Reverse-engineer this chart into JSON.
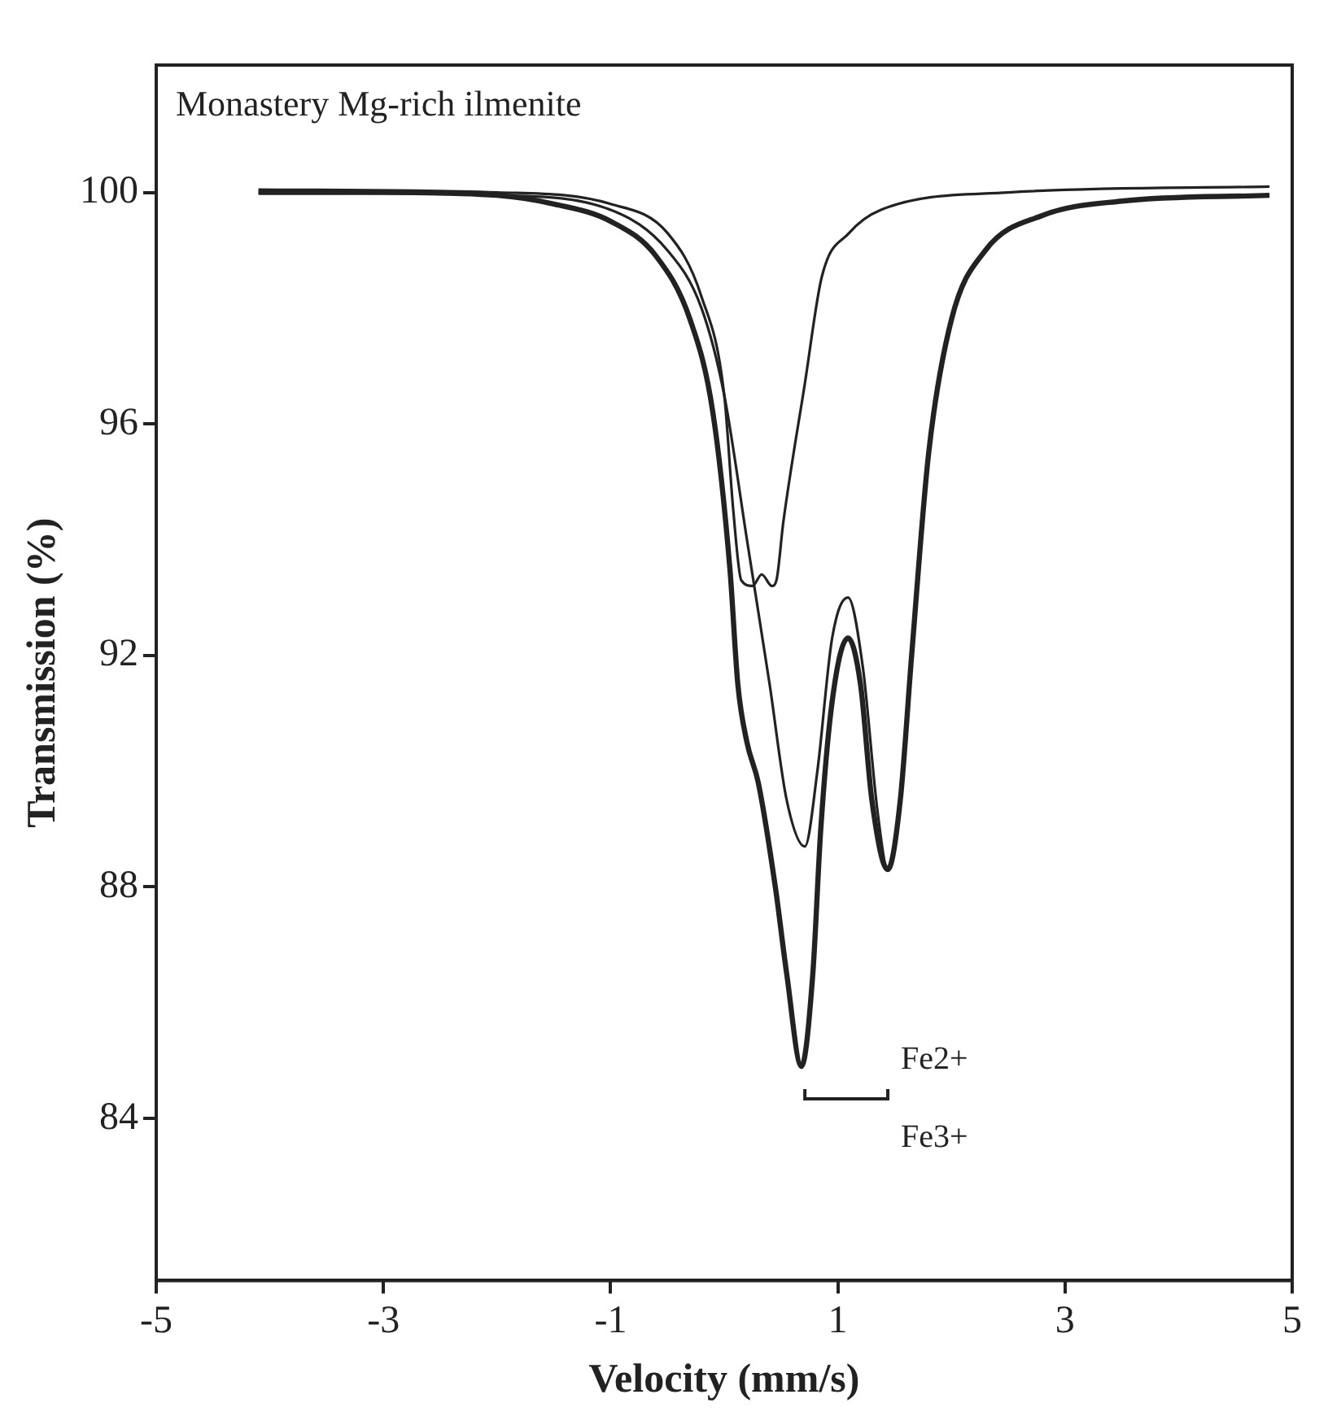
{
  "chart_data": {
    "type": "line",
    "title": "Monastery Mg-rich ilmenite",
    "xlabel": "Velocity (mm/s)",
    "ylabel": "Transmission (%)",
    "xlim": [
      -5,
      5
    ],
    "xticks": [
      -5,
      -3,
      -1,
      1,
      3,
      5
    ],
    "ylim": [
      81.2,
      102.2
    ],
    "yticks": [
      84,
      88,
      92,
      96,
      100
    ],
    "grid": false,
    "legend": false,
    "marker": "none",
    "line_style": "solid",
    "series": [
      {
        "color": "#222222",
        "x": [
          -4.1,
          -3,
          -2,
          -1.5,
          -1,
          -0.6,
          -0.3,
          -0.1,
          0.05,
          0.12,
          0.2,
          0.3,
          0.45,
          0.55,
          0.68,
          0.78,
          0.85,
          0.95,
          1.09,
          1.2,
          1.3,
          1.44,
          1.55,
          1.65,
          1.8,
          2,
          2.3,
          2.8,
          3.5,
          4.8
        ],
        "values": [
          100,
          100,
          99.95,
          99.8,
          99.5,
          98.9,
          97.8,
          96.2,
          93.5,
          91.5,
          90.5,
          89.8,
          88,
          86.5,
          84.9,
          86.5,
          89,
          91.2,
          92.3,
          91.5,
          89.5,
          88.3,
          89.5,
          92,
          95.5,
          97.8,
          99,
          99.6,
          99.85,
          99.95
        ]
      },
      {
        "color": "#222222",
        "x": [
          -4.1,
          -2,
          -1,
          -0.5,
          -0.2,
          0,
          0.2,
          0.4,
          0.55,
          0.71,
          0.82,
          0.95,
          1.09,
          1.22,
          1.35,
          1.44,
          1.55,
          1.65,
          1.8,
          2,
          2.3,
          2.8,
          3.5,
          4.8
        ],
        "values": [
          100,
          99.95,
          99.7,
          99,
          98,
          96.5,
          94,
          91.5,
          89.5,
          88.7,
          90,
          92.3,
          93,
          91.8,
          89.3,
          88.3,
          89.5,
          92,
          95.5,
          97.8,
          99,
          99.6,
          99.85,
          99.95
        ]
      },
      {
        "color": "#222222",
        "x": [
          -4.1,
          -2,
          -1,
          -0.5,
          -0.2,
          0,
          0.08,
          0.15,
          0.25,
          0.33,
          0.42,
          0.46,
          0.52,
          0.71,
          0.86,
          1.1,
          1.38,
          2.5,
          4.8
        ],
        "values": [
          100.05,
          100,
          99.8,
          99.3,
          98.2,
          96.5,
          94.5,
          93.3,
          93.2,
          93.4,
          93.2,
          93.3,
          94.3,
          96.7,
          98.55,
          99.3,
          99.7,
          100,
          100.1
        ]
      }
    ],
    "annotations": [
      "Fe2+",
      "Fe3+"
    ]
  }
}
